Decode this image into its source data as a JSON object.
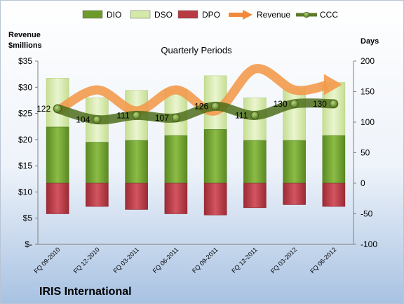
{
  "company_label": "IRIS International",
  "chart_data": {
    "type": "bar",
    "title": "Quarterly Periods",
    "left_axis_title_line1": "Revenue",
    "left_axis_title_line2": "$millions",
    "right_axis_title": "Days",
    "categories": [
      "FQ 09-2010",
      "FQ 12-2010",
      "FQ 03-2011",
      "FQ 06-2011",
      "FQ 09-2011",
      "FQ 12-2011",
      "FQ 03-2012",
      "FQ 06-2012"
    ],
    "left_axis": {
      "min": 0,
      "max": 35,
      "step": 5,
      "tick_labels": [
        "$-",
        "$5",
        "$10",
        "$15",
        "$20",
        "$25",
        "$30",
        "$35"
      ]
    },
    "right_axis": {
      "min": -100,
      "max": 200,
      "step": 50,
      "tick_labels": [
        "-100",
        "-50",
        "0",
        "50",
        "100",
        "150",
        "200"
      ]
    },
    "legend": {
      "placement": "top",
      "items": [
        {
          "name": "DIO",
          "kind": "bar",
          "color": "#6e9a2c"
        },
        {
          "name": "DSO",
          "kind": "bar",
          "color": "#d4e9a8"
        },
        {
          "name": "DPO",
          "kind": "bar",
          "color": "#b83a42"
        },
        {
          "name": "Revenue",
          "kind": "arrow",
          "color": "#f08a3a"
        },
        {
          "name": "CCC",
          "kind": "line",
          "color": "#5c7a2a"
        }
      ]
    },
    "series": [
      {
        "name": "DIO",
        "axis": "right",
        "values": [
          92,
          67,
          70,
          78,
          88,
          70,
          70,
          78
        ]
      },
      {
        "name": "DSO",
        "axis": "right",
        "values": [
          80,
          73,
          82,
          76,
          88,
          70,
          85,
          87
        ]
      },
      {
        "name": "DPO",
        "axis": "right",
        "values": [
          -50,
          -38,
          -43,
          -50,
          -52,
          -40,
          -35,
          -38
        ]
      },
      {
        "name": "Revenue",
        "axis": "left",
        "values": [
          25.5,
          29.5,
          25.5,
          29.5,
          25.5,
          33.5,
          29.5,
          30.5
        ]
      },
      {
        "name": "CCC",
        "axis": "right",
        "values": [
          122,
          104,
          111,
          107,
          126,
          111,
          130,
          130
        ],
        "labels": [
          "122",
          "104",
          "111",
          "107",
          "126",
          "111",
          "130",
          "130"
        ]
      }
    ],
    "grid": false
  }
}
